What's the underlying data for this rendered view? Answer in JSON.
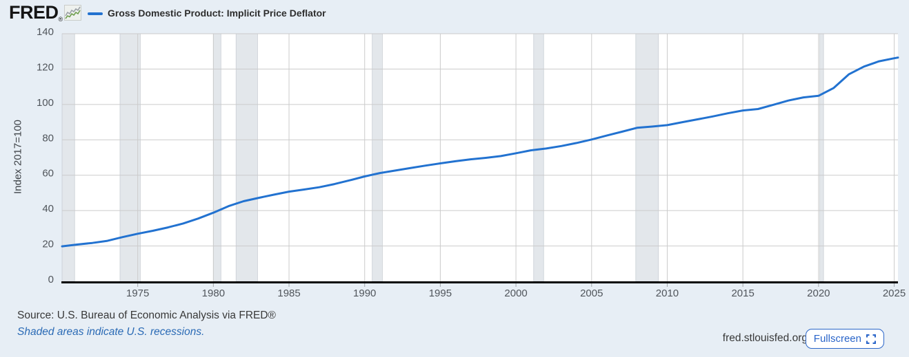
{
  "header": {
    "logo_text": "FRED",
    "logo_registered": "®",
    "series_title": "Gross Domestic Product: Implicit Price Deflator"
  },
  "chart_data": {
    "type": "line",
    "title": "Gross Domestic Product: Implicit Price Deflator",
    "xlabel": "",
    "ylabel": "Index 2017=100",
    "xlim": [
      1970,
      2025.25
    ],
    "ylim": [
      0,
      140
    ],
    "yticks": [
      0,
      20,
      40,
      60,
      80,
      100,
      120,
      140
    ],
    "xticks": [
      1975,
      1980,
      1985,
      1990,
      1995,
      2000,
      2005,
      2010,
      2015,
      2020,
      2025
    ],
    "grid": true,
    "legend_position": "top-left",
    "recessions": [
      [
        1970.0,
        1970.83
      ],
      [
        1973.83,
        1975.17
      ],
      [
        1980.0,
        1980.5
      ],
      [
        1981.5,
        1982.92
      ],
      [
        1990.5,
        1991.17
      ],
      [
        2001.17,
        2001.83
      ],
      [
        2007.92,
        2009.42
      ],
      [
        2020.08,
        2020.33
      ]
    ],
    "series": [
      {
        "name": "Gross Domestic Product: Implicit Price Deflator",
        "color": "#2272d0",
        "x": [
          1970,
          1971,
          1972,
          1973,
          1974,
          1975,
          1976,
          1977,
          1978,
          1979,
          1980,
          1981,
          1982,
          1983,
          1984,
          1985,
          1986,
          1987,
          1988,
          1989,
          1990,
          1991,
          1992,
          1993,
          1994,
          1995,
          1996,
          1997,
          1998,
          1999,
          2000,
          2001,
          2002,
          2003,
          2004,
          2005,
          2006,
          2007,
          2008,
          2009,
          2010,
          2011,
          2012,
          2013,
          2014,
          2015,
          2016,
          2017,
          2018,
          2019,
          2020,
          2021,
          2022,
          2023,
          2024,
          2025,
          2025.25
        ],
        "values": [
          19.8,
          20.8,
          21.7,
          22.9,
          25.0,
          26.9,
          28.6,
          30.5,
          32.7,
          35.5,
          38.8,
          42.5,
          45.3,
          47.2,
          49.0,
          50.7,
          51.9,
          53.2,
          55.0,
          57.1,
          59.3,
          61.2,
          62.6,
          64.0,
          65.4,
          66.7,
          67.9,
          69.0,
          69.8,
          70.8,
          72.4,
          74.1,
          75.1,
          76.5,
          78.2,
          80.2,
          82.4,
          84.6,
          86.8,
          87.5,
          88.3,
          90.0,
          91.6,
          93.2,
          95.0,
          96.6,
          97.4,
          99.8,
          102.2,
          104.0,
          104.9,
          109.3,
          117.0,
          121.4,
          124.4,
          126.1,
          126.5
        ]
      }
    ]
  },
  "footer": {
    "source_line": "Source: U.S. Bureau of Economic Analysis via FRED®",
    "recession_note": "Shaded areas indicate U.S. recessions.",
    "site_url": "fred.stlouisfed.org",
    "fullscreen_label": "Fullscreen"
  },
  "colors": {
    "series": "#2272d0",
    "page_background": "#e7eef5",
    "plot_background": "#ffffff",
    "gridline": "#cbcbcb",
    "recession_fill": "#e3e7eb",
    "recession_edge": "#c9ced4",
    "axis_line": "#000000",
    "tick_text": "#50555b",
    "accent_blue": "#2a65c9"
  }
}
